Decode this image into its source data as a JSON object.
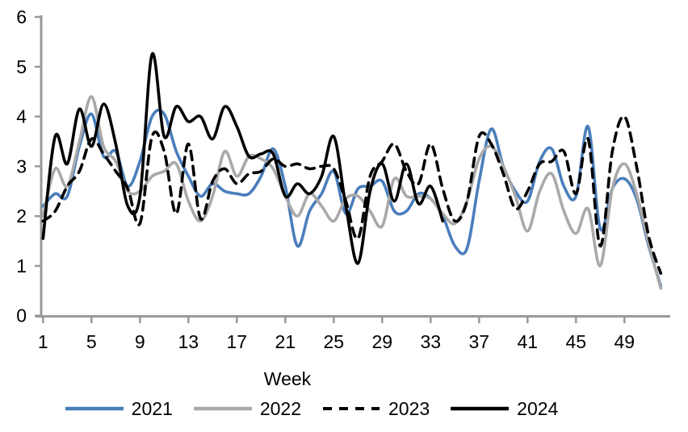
{
  "chart_data": {
    "type": "line",
    "title": "",
    "xlabel": "Week",
    "ylabel": "",
    "xlim": [
      1,
      52
    ],
    "ylim": [
      0,
      6
    ],
    "grid": false,
    "legend_position": "bottom",
    "x_ticks": [
      1,
      5,
      9,
      13,
      17,
      21,
      25,
      29,
      33,
      37,
      41,
      45,
      49
    ],
    "y_ticks": [
      0,
      1,
      2,
      3,
      4,
      5,
      6
    ],
    "x": [
      1,
      2,
      3,
      4,
      5,
      6,
      7,
      8,
      9,
      10,
      11,
      12,
      13,
      14,
      15,
      16,
      17,
      18,
      19,
      20,
      21,
      22,
      23,
      24,
      25,
      26,
      27,
      28,
      29,
      30,
      31,
      32,
      33,
      34,
      35,
      36,
      37,
      38,
      39,
      40,
      41,
      42,
      43,
      44,
      45,
      46,
      47,
      48,
      49,
      50,
      51,
      52
    ],
    "series": [
      {
        "name": "2021",
        "color": "#4A7EBB",
        "style": "solid",
        "values": [
          2.2,
          2.45,
          2.4,
          3.4,
          4.05,
          3.2,
          3.3,
          2.6,
          3.1,
          4.0,
          4.05,
          3.3,
          2.8,
          2.4,
          2.65,
          2.5,
          2.45,
          2.45,
          2.8,
          3.35,
          2.6,
          1.4,
          2.1,
          2.45,
          2.9,
          2.05,
          2.55,
          2.6,
          2.7,
          2.1,
          2.1,
          2.45,
          2.35,
          2.0,
          1.4,
          1.35,
          2.7,
          3.75,
          3.0,
          2.5,
          2.3,
          3.1,
          3.35,
          2.6,
          2.4,
          3.8,
          1.75,
          2.55,
          2.75,
          2.35,
          1.4,
          0.6
        ]
      },
      {
        "name": "2022",
        "color": "#A9A9A9",
        "style": "solid",
        "values": [
          2.0,
          2.95,
          2.6,
          3.5,
          4.4,
          3.4,
          3.1,
          2.5,
          2.5,
          2.8,
          2.9,
          3.05,
          2.3,
          1.9,
          2.4,
          3.3,
          2.8,
          3.2,
          3.15,
          2.95,
          2.4,
          2.0,
          2.45,
          2.2,
          1.9,
          2.35,
          2.4,
          2.1,
          1.8,
          2.75,
          2.4,
          2.4,
          2.35,
          2.05,
          1.85,
          2.3,
          3.15,
          3.4,
          3.0,
          2.4,
          1.7,
          2.5,
          2.85,
          2.1,
          1.65,
          2.15,
          1.0,
          2.55,
          3.05,
          2.45,
          1.45,
          0.55
        ]
      },
      {
        "name": "2023",
        "color": "#000000",
        "style": "dashed",
        "values": [
          1.9,
          2.1,
          2.6,
          2.9,
          3.55,
          3.25,
          2.9,
          2.55,
          1.85,
          3.6,
          3.3,
          2.05,
          3.45,
          1.95,
          2.7,
          2.95,
          2.65,
          2.85,
          2.9,
          3.15,
          3.0,
          3.05,
          2.95,
          3.0,
          2.95,
          2.3,
          1.55,
          2.8,
          3.1,
          3.45,
          2.9,
          2.65,
          3.45,
          2.55,
          1.9,
          2.3,
          3.6,
          3.45,
          2.85,
          2.15,
          2.5,
          3.05,
          3.1,
          3.3,
          2.45,
          3.55,
          1.4,
          3.3,
          4.0,
          3.0,
          1.6,
          0.85
        ]
      },
      {
        "name": "2024",
        "color": "#000000",
        "style": "solid",
        "values": [
          1.55,
          3.6,
          3.05,
          4.15,
          3.4,
          4.25,
          3.45,
          2.2,
          2.4,
          5.25,
          3.6,
          4.2,
          3.9,
          4.0,
          3.55,
          4.2,
          3.8,
          3.2,
          3.25,
          3.25,
          2.4,
          2.65,
          2.45,
          2.8,
          3.6,
          2.2,
          1.05,
          2.5,
          3.05,
          2.3,
          3.05,
          2.25,
          2.6,
          1.9
        ]
      }
    ]
  },
  "axis": {
    "color": "#999999",
    "text_color": "#000000"
  }
}
